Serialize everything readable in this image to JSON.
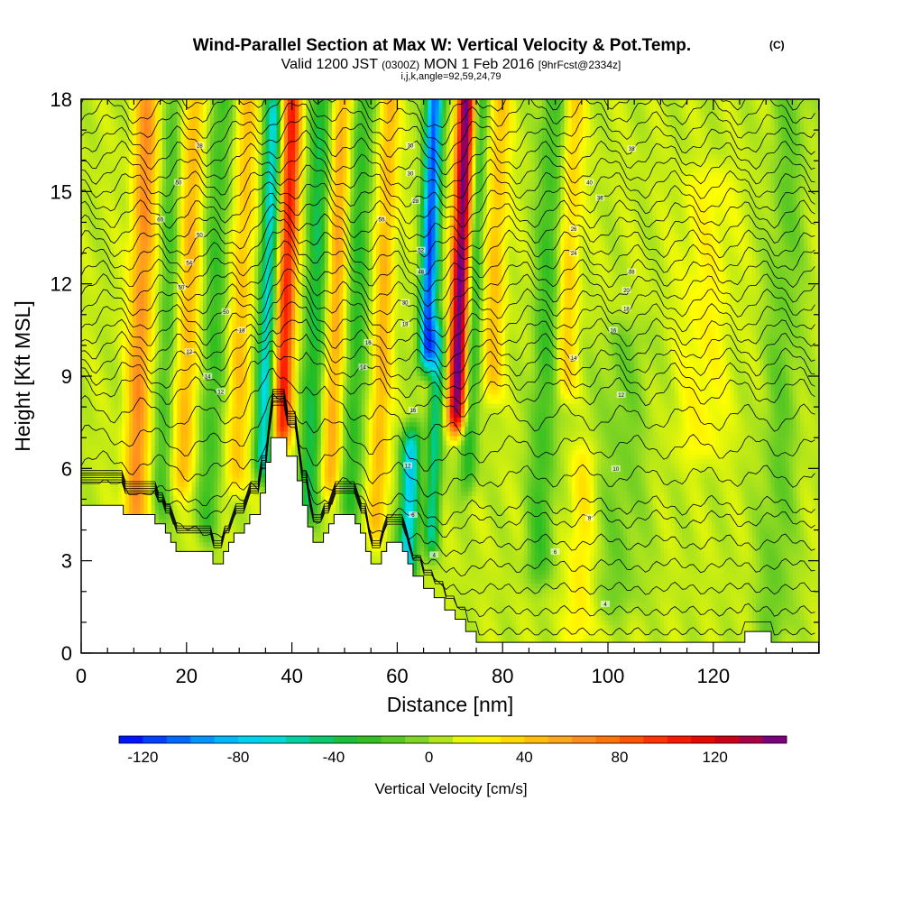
{
  "title": {
    "main": "Wind-Parallel Section at Max W: Vertical Velocity & Pot.Temp.",
    "copyright": "(C)",
    "valid_prefix": "Valid 1200 JST",
    "utc": "(0300Z)",
    "valid_date": "MON 1 Feb 2016",
    "fcst": "[9hrFcst@2334z]",
    "params": "i,j,k,angle=92,59,24,79"
  },
  "chart_data": {
    "type": "heatmap",
    "xlabel": "Distance [nm]",
    "ylabel": "Height [Kft MSL]",
    "xlim": [
      0,
      140
    ],
    "ylim": [
      0,
      18
    ],
    "x_ticks": [
      "0",
      "20",
      "40",
      "60",
      "80",
      "100",
      "120"
    ],
    "y_ticks": [
      "0",
      "3",
      "6",
      "9",
      "12",
      "15",
      "18"
    ],
    "colorbar": {
      "label": "Vertical Velocity [cm/s]",
      "min": -130,
      "max": 150,
      "step": 10,
      "tick_labels": [
        "-120",
        "-80",
        "-40",
        "0",
        "40",
        "80",
        "120"
      ],
      "tick_values": [
        -120,
        -80,
        -40,
        0,
        40,
        80,
        120
      ]
    },
    "terrain_kft": [
      [
        0,
        4.8
      ],
      [
        8,
        4.8
      ],
      [
        8,
        4.5
      ],
      [
        14,
        4.5
      ],
      [
        14,
        4.2
      ],
      [
        16,
        4.2
      ],
      [
        16,
        3.9
      ],
      [
        17,
        3.9
      ],
      [
        17,
        3.6
      ],
      [
        18,
        3.6
      ],
      [
        18,
        3.3
      ],
      [
        25,
        3.3
      ],
      [
        25,
        2.9
      ],
      [
        27,
        2.9
      ],
      [
        27,
        3.3
      ],
      [
        28,
        3.3
      ],
      [
        28,
        3.6
      ],
      [
        29,
        3.6
      ],
      [
        29,
        3.9
      ],
      [
        31,
        3.9
      ],
      [
        31,
        4.2
      ],
      [
        32,
        4.2
      ],
      [
        32,
        4.5
      ],
      [
        34,
        4.5
      ],
      [
        34,
        5.2
      ],
      [
        35,
        5.2
      ],
      [
        35,
        6.2
      ],
      [
        36,
        6.2
      ],
      [
        36,
        7.0
      ],
      [
        39,
        7.0
      ],
      [
        39,
        6.4
      ],
      [
        41,
        6.4
      ],
      [
        41,
        5.6
      ],
      [
        42,
        5.6
      ],
      [
        42,
        4.8
      ],
      [
        43,
        4.8
      ],
      [
        43,
        4.1
      ],
      [
        44,
        4.1
      ],
      [
        44,
        3.6
      ],
      [
        46,
        3.6
      ],
      [
        46,
        3.9
      ],
      [
        47,
        3.9
      ],
      [
        47,
        4.2
      ],
      [
        48,
        4.2
      ],
      [
        48,
        4.5
      ],
      [
        52,
        4.5
      ],
      [
        52,
        4.2
      ],
      [
        53,
        4.2
      ],
      [
        53,
        3.9
      ],
      [
        54,
        3.9
      ],
      [
        54,
        3.3
      ],
      [
        55,
        3.3
      ],
      [
        55,
        2.9
      ],
      [
        57,
        2.9
      ],
      [
        57,
        3.3
      ],
      [
        58,
        3.3
      ],
      [
        58,
        3.6
      ],
      [
        61,
        3.6
      ],
      [
        61,
        3.3
      ],
      [
        62,
        3.3
      ],
      [
        62,
        2.9
      ],
      [
        63,
        2.9
      ],
      [
        63,
        2.5
      ],
      [
        65,
        2.5
      ],
      [
        65,
        2.1
      ],
      [
        67,
        2.1
      ],
      [
        67,
        1.8
      ],
      [
        69,
        1.8
      ],
      [
        69,
        1.4
      ],
      [
        71,
        1.4
      ],
      [
        71,
        1.1
      ],
      [
        73,
        1.1
      ],
      [
        73,
        0.7
      ],
      [
        75,
        0.7
      ],
      [
        75,
        0.35
      ],
      [
        126,
        0.35
      ],
      [
        126,
        0.7
      ],
      [
        131,
        0.7
      ],
      [
        131,
        0.35
      ],
      [
        140,
        0.35
      ]
    ],
    "bands": [
      {
        "x": 11,
        "w": 2.2,
        "amp": 55,
        "y0": 4.0,
        "y1": 18.0
      },
      {
        "x": 16,
        "w": 1.8,
        "amp": -25,
        "y0": 5.0,
        "y1": 18.0
      },
      {
        "x": 20,
        "w": 2.0,
        "amp": 40,
        "y0": 6.0,
        "y1": 18.0
      },
      {
        "x": 25,
        "w": 2.2,
        "amp": -30,
        "y0": 4.5,
        "y1": 18.0
      },
      {
        "x": 30,
        "w": 2.0,
        "amp": 35,
        "y0": 6.0,
        "y1": 18.0
      },
      {
        "x": 35,
        "w": 1.6,
        "amp": -75,
        "y0": 6.5,
        "y1": 17.5
      },
      {
        "x": 38.5,
        "w": 1.8,
        "amp": 95,
        "y0": 7.5,
        "y1": 17.8
      },
      {
        "x": 44,
        "w": 2.0,
        "amp": -45,
        "y0": 5.0,
        "y1": 18.0
      },
      {
        "x": 48,
        "w": 1.8,
        "amp": 45,
        "y0": 6.0,
        "y1": 18.0
      },
      {
        "x": 52,
        "w": 2.0,
        "amp": -35,
        "y0": 5.0,
        "y1": 18.0
      },
      {
        "x": 57,
        "w": 1.8,
        "amp": 40,
        "y0": 4.5,
        "y1": 18.0
      },
      {
        "x": 63,
        "w": 1.8,
        "amp": -85,
        "y0": 3.0,
        "y1": 6.5
      },
      {
        "x": 65.5,
        "w": 1.6,
        "amp": -120,
        "y0": 10.0,
        "y1": 18.0
      },
      {
        "x": 67.5,
        "w": 1.4,
        "amp": -60,
        "y0": 4.0,
        "y1": 10.0
      },
      {
        "x": 71.5,
        "w": 1.7,
        "amp": 145,
        "y0": 8.0,
        "y1": 18.0
      },
      {
        "x": 74,
        "w": 1.6,
        "amp": -40,
        "y0": 6.0,
        "y1": 18.0
      },
      {
        "x": 78,
        "w": 2.0,
        "amp": 35,
        "y0": 9.0,
        "y1": 18.0
      },
      {
        "x": 88,
        "w": 2.5,
        "amp": -30,
        "y0": 3.0,
        "y1": 18.0
      },
      {
        "x": 92,
        "w": 2.0,
        "amp": 30,
        "y0": 9.0,
        "y1": 18.0
      },
      {
        "x": 96,
        "w": 2.5,
        "amp": 22,
        "y0": 1.0,
        "y1": 6.0
      },
      {
        "x": 103,
        "w": 5.0,
        "amp": -15,
        "y0": 2.0,
        "y1": 10.0
      },
      {
        "x": 118,
        "w": 5.0,
        "amp": 15,
        "y0": 7.0,
        "y1": 15.0
      },
      {
        "x": 133,
        "w": 3.5,
        "amp": -18,
        "y0": 1.0,
        "y1": 18.0
      }
    ],
    "contour_labels": [
      {
        "x": 22.5,
        "y": 16.5,
        "t": "28"
      },
      {
        "x": 18.5,
        "y": 15.3,
        "t": "50"
      },
      {
        "x": 15,
        "y": 14.1,
        "t": "60"
      },
      {
        "x": 22.5,
        "y": 13.6,
        "t": "50"
      },
      {
        "x": 20.5,
        "y": 12.7,
        "t": "54"
      },
      {
        "x": 19,
        "y": 11.9,
        "t": "50"
      },
      {
        "x": 27.5,
        "y": 11.1,
        "t": "50"
      },
      {
        "x": 30.5,
        "y": 10.5,
        "t": "18"
      },
      {
        "x": 20.5,
        "y": 9.8,
        "t": "12"
      },
      {
        "x": 24,
        "y": 9.0,
        "t": "14"
      },
      {
        "x": 26.5,
        "y": 8.5,
        "t": "12"
      },
      {
        "x": 57,
        "y": 14.1,
        "t": "50"
      },
      {
        "x": 62.5,
        "y": 16.5,
        "t": "30"
      },
      {
        "x": 62.5,
        "y": 15.6,
        "t": "30"
      },
      {
        "x": 63.5,
        "y": 14.7,
        "t": "28"
      },
      {
        "x": 64.5,
        "y": 13.1,
        "t": "52"
      },
      {
        "x": 64.5,
        "y": 12.4,
        "t": "48"
      },
      {
        "x": 61.5,
        "y": 11.4,
        "t": "30"
      },
      {
        "x": 61.5,
        "y": 10.7,
        "t": "18"
      },
      {
        "x": 54.5,
        "y": 10.1,
        "t": "16"
      },
      {
        "x": 53.5,
        "y": 9.3,
        "t": "14"
      },
      {
        "x": 63,
        "y": 7.9,
        "t": "16"
      },
      {
        "x": 62,
        "y": 6.1,
        "t": "12"
      },
      {
        "x": 63,
        "y": 4.5,
        "t": "6"
      },
      {
        "x": 67,
        "y": 3.2,
        "t": "4"
      },
      {
        "x": 104.5,
        "y": 16.4,
        "t": "38"
      },
      {
        "x": 96.5,
        "y": 15.3,
        "t": "40"
      },
      {
        "x": 98.5,
        "y": 14.8,
        "t": "36"
      },
      {
        "x": 93.5,
        "y": 13.8,
        "t": "26"
      },
      {
        "x": 93.5,
        "y": 13.0,
        "t": "24"
      },
      {
        "x": 104.5,
        "y": 12.4,
        "t": "38"
      },
      {
        "x": 103.5,
        "y": 11.8,
        "t": "20"
      },
      {
        "x": 103.5,
        "y": 11.2,
        "t": "18"
      },
      {
        "x": 101,
        "y": 10.5,
        "t": "16"
      },
      {
        "x": 93.5,
        "y": 9.6,
        "t": "14"
      },
      {
        "x": 102.5,
        "y": 8.4,
        "t": "12"
      },
      {
        "x": 101.5,
        "y": 6.0,
        "t": "10"
      },
      {
        "x": 96.5,
        "y": 4.4,
        "t": "8"
      },
      {
        "x": 90,
        "y": 3.3,
        "t": "6"
      },
      {
        "x": 99.5,
        "y": 1.6,
        "t": "4"
      }
    ]
  }
}
